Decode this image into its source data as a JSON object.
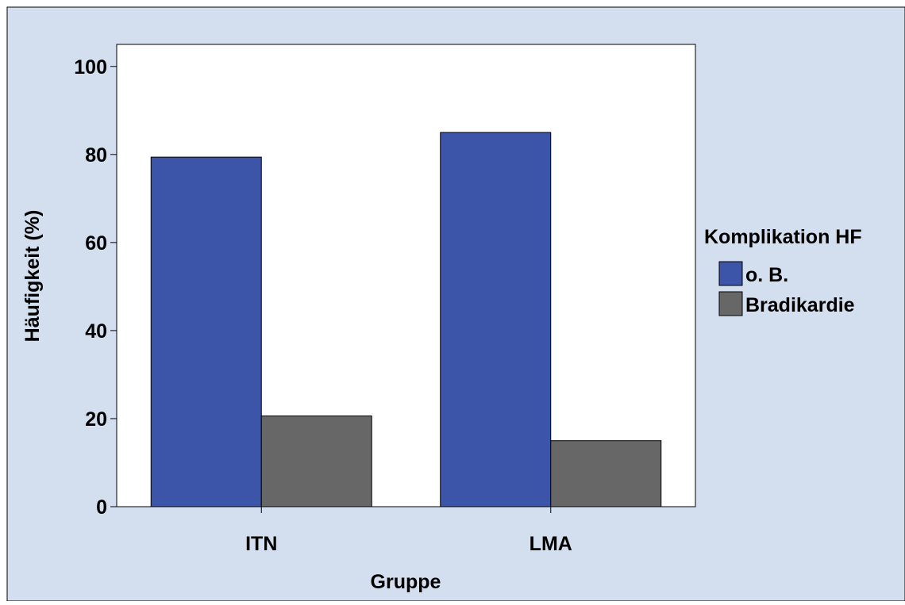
{
  "chart_data": {
    "type": "bar",
    "title": "",
    "xlabel": "Gruppe",
    "ylabel": "Häufigkeit (%)",
    "categories": [
      "ITN",
      "LMA"
    ],
    "series": [
      {
        "name": "o. B.",
        "values": [
          79.4,
          85.0
        ],
        "color": "#3c55a8"
      },
      {
        "name": "Bradikardie",
        "values": [
          20.6,
          15.0
        ],
        "color": "#676767"
      }
    ],
    "ylim": [
      0,
      105
    ],
    "yticks": [
      0,
      20,
      40,
      60,
      80,
      100
    ],
    "grid": false,
    "legend": {
      "title": "Komplikation HF",
      "placement": "right"
    },
    "colors": {
      "background": "#d3dfee",
      "plot_area": "#ffffff"
    }
  }
}
